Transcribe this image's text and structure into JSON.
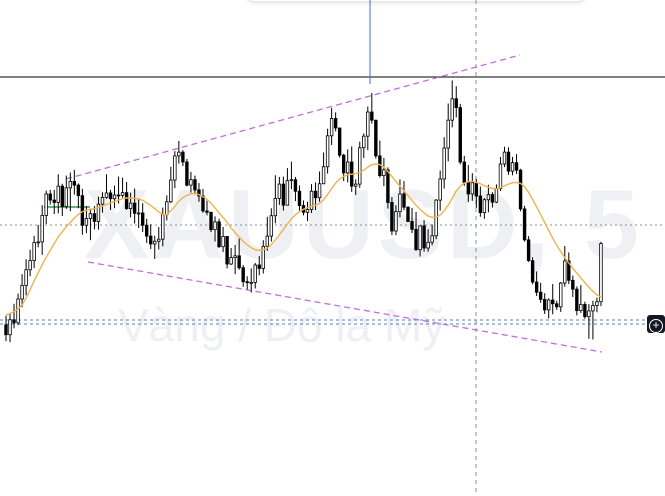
{
  "watermark": {
    "symbol": "XAUUSD, 5",
    "description": "Vàng / Đô la Mỹ"
  },
  "buttons": {
    "add_label": "+"
  },
  "colors": {
    "candle_body": "#ffffff",
    "candle_border": "#000000",
    "moving_average": "#f0b34f",
    "trendline": "#c36ddf",
    "crosshair": "#8a8f99",
    "horizontal_line": "#000000",
    "price_marker": "#5b7dbf",
    "vertical_marker": "#3f6fcf",
    "short_marker": "#2e9c44"
  },
  "chart_data": {
    "type": "candlestick",
    "title": "",
    "xlabel": "",
    "ylabel": "",
    "x": [],
    "ylim": [
      0,
      100
    ],
    "grid": false,
    "legend": "none",
    "note_values": "price units are not shown in the image; values below are on a 0-100 relative scale",
    "ohlc": [
      [
        22.1,
        24.8,
        17.3,
        19.2
      ],
      [
        19.2,
        25.5,
        17.0,
        23.6
      ],
      [
        23.6,
        28.3,
        21.1,
        22.7
      ],
      [
        22.7,
        31.3,
        22.0,
        29.7
      ],
      [
        29.7,
        37.0,
        27.3,
        33.7
      ],
      [
        33.7,
        41.4,
        30.8,
        38.3
      ],
      [
        38.3,
        44.2,
        36.4,
        41.0
      ],
      [
        41.0,
        48.3,
        38.8,
        46.3
      ],
      [
        46.3,
        51.5,
        44.9,
        46.5
      ],
      [
        46.5,
        57.3,
        42.7,
        54.3
      ],
      [
        54.3,
        61.6,
        51.8,
        60.6
      ],
      [
        60.6,
        61.8,
        57.5,
        58.8
      ],
      [
        58.8,
        61.8,
        54.7,
        58.1
      ],
      [
        58.1,
        66.4,
        54.9,
        62.9
      ],
      [
        62.9,
        63.6,
        54.1,
        56.9
      ],
      [
        56.9,
        66.0,
        56.2,
        62.4
      ],
      [
        62.4,
        66.9,
        55.5,
        64.3
      ],
      [
        64.3,
        67.7,
        60.4,
        63.2
      ],
      [
        63.2,
        63.7,
        56.4,
        60.1
      ],
      [
        60.1,
        62.1,
        48.6,
        51.4
      ],
      [
        51.4,
        57.0,
        49.1,
        53.4
      ],
      [
        53.4,
        56.3,
        47.0,
        54.8
      ],
      [
        54.8,
        57.0,
        50.2,
        52.5
      ],
      [
        52.5,
        59.8,
        50.1,
        57.6
      ],
      [
        57.6,
        61.1,
        55.1,
        59.6
      ],
      [
        59.6,
        66.4,
        59.2,
        60.9
      ],
      [
        60.9,
        61.8,
        55.9,
        59.2
      ],
      [
        59.2,
        63.1,
        56.4,
        60.3
      ],
      [
        60.3,
        65.7,
        57.8,
        60.2
      ],
      [
        60.2,
        65.4,
        59.5,
        61.0
      ],
      [
        61.0,
        64.1,
        55.9,
        56.3
      ],
      [
        56.3,
        61.0,
        53.7,
        57.9
      ],
      [
        57.9,
        62.2,
        51.9,
        54.9
      ],
      [
        54.9,
        59.3,
        50.6,
        55.0
      ],
      [
        55.0,
        57.9,
        49.4,
        51.4
      ],
      [
        51.4,
        53.3,
        46.2,
        48.2
      ],
      [
        48.2,
        51.7,
        44.4,
        45.9
      ],
      [
        45.9,
        48.3,
        41.5,
        46.7
      ],
      [
        46.7,
        50.9,
        44.3,
        47.3
      ],
      [
        47.3,
        56.6,
        45.2,
        54.5
      ],
      [
        54.5,
        60.2,
        52.8,
        58.3
      ],
      [
        58.3,
        68.6,
        57.9,
        64.7
      ],
      [
        64.7,
        73.2,
        62.3,
        71.8
      ],
      [
        71.8,
        76.2,
        69.5,
        72.9
      ],
      [
        72.9,
        73.5,
        68.8,
        70.0
      ],
      [
        70.0,
        70.9,
        62.8,
        63.2
      ],
      [
        63.2,
        67.1,
        61.0,
        64.8
      ],
      [
        64.8,
        66.0,
        60.5,
        61.8
      ],
      [
        61.8,
        63.8,
        58.3,
        60.0
      ],
      [
        60.0,
        62.1,
        55.1,
        55.6
      ],
      [
        55.6,
        58.6,
        54.3,
        55.2
      ],
      [
        55.2,
        55.4,
        49.4,
        50.1
      ],
      [
        50.1,
        54.0,
        46.6,
        52.4
      ],
      [
        52.4,
        53.3,
        44.7,
        45.1
      ],
      [
        45.1,
        50.9,
        43.5,
        48.1
      ],
      [
        48.1,
        48.1,
        38.7,
        40.0
      ],
      [
        40.0,
        44.7,
        39.7,
        41.9
      ],
      [
        41.9,
        45.6,
        37.0,
        42.4
      ],
      [
        42.4,
        47.5,
        38.3,
        38.9
      ],
      [
        38.9,
        39.7,
        33.3,
        34.8
      ],
      [
        34.8,
        36.4,
        32.5,
        34.5
      ],
      [
        34.5,
        38.7,
        31.6,
        34.6
      ],
      [
        34.6,
        40.3,
        32.8,
        39.7
      ],
      [
        39.7,
        42.3,
        36.7,
        38.7
      ],
      [
        38.7,
        47.0,
        37.2,
        45.2
      ],
      [
        45.2,
        53.9,
        43.9,
        48.2
      ],
      [
        48.2,
        56.4,
        46.6,
        54.2
      ],
      [
        54.2,
        66.1,
        52.0,
        59.3
      ],
      [
        59.3,
        65.6,
        57.4,
        63.5
      ],
      [
        63.5,
        65.7,
        55.7,
        57.3
      ],
      [
        57.3,
        68.2,
        57.3,
        64.5
      ],
      [
        64.5,
        70.1,
        62.0,
        64.8
      ],
      [
        64.8,
        65.6,
        58.5,
        61.4
      ],
      [
        61.4,
        63.1,
        55.7,
        57.2
      ],
      [
        57.2,
        58.7,
        54.3,
        55.2
      ],
      [
        55.2,
        58.3,
        52.6,
        56.0
      ],
      [
        56.0,
        63.5,
        55.0,
        61.4
      ],
      [
        61.4,
        64.0,
        55.9,
        59.5
      ],
      [
        59.5,
        67.2,
        58.3,
        63.6
      ],
      [
        63.6,
        72.8,
        63.5,
        68.6
      ],
      [
        68.6,
        79.8,
        66.6,
        77.7
      ],
      [
        77.7,
        85.9,
        75.0,
        82.8
      ],
      [
        82.8,
        84.6,
        79.0,
        80.0
      ],
      [
        80.0,
        80.1,
        71.3,
        72.0
      ],
      [
        72.0,
        72.4,
        64.4,
        66.8
      ],
      [
        66.8,
        73.7,
        64.0,
        70.0
      ],
      [
        70.0,
        74.6,
        61.2,
        62.9
      ],
      [
        62.9,
        64.9,
        60.3,
        63.5
      ],
      [
        63.5,
        76.0,
        62.4,
        74.2
      ],
      [
        74.2,
        78.4,
        71.2,
        77.6
      ],
      [
        77.6,
        86.3,
        73.5,
        84.7
      ],
      [
        84.7,
        90.3,
        81.3,
        82.3
      ],
      [
        82.3,
        82.4,
        71.0,
        71.8
      ],
      [
        71.8,
        76.3,
        65.4,
        66.0
      ],
      [
        66.0,
        71.2,
        62.9,
        67.7
      ],
      [
        67.7,
        68.4,
        56.3,
        58.1
      ],
      [
        58.1,
        59.7,
        48.5,
        49.7
      ],
      [
        49.7,
        57.3,
        48.5,
        55.4
      ],
      [
        55.4,
        64.9,
        53.7,
        60.6
      ],
      [
        60.6,
        64.4,
        55.8,
        56.7
      ],
      [
        56.7,
        57.0,
        52.3,
        52.5
      ],
      [
        52.5,
        56.5,
        49.1,
        50.2
      ],
      [
        50.2,
        55.3,
        43.9,
        44.2
      ],
      [
        44.2,
        51.3,
        42.2,
        51.2
      ],
      [
        51.2,
        52.9,
        43.6,
        44.7
      ],
      [
        44.7,
        50.2,
        43.6,
        46.4
      ],
      [
        46.4,
        51.6,
        45.5,
        48.3
      ],
      [
        48.3,
        59.1,
        47.3,
        58.8
      ],
      [
        58.8,
        67.5,
        55.7,
        65.0
      ],
      [
        65.0,
        77.3,
        62.2,
        74.1
      ],
      [
        74.1,
        87.2,
        70.2,
        82.3
      ],
      [
        82.3,
        94.0,
        80.2,
        88.6
      ],
      [
        88.6,
        92.3,
        83.1,
        86.0
      ],
      [
        86.0,
        87.1,
        69.3,
        70.0
      ],
      [
        70.0,
        71.8,
        63.0,
        64.0
      ],
      [
        64.0,
        69.1,
        58.2,
        60.6
      ],
      [
        60.6,
        66.7,
        58.6,
        63.9
      ],
      [
        63.9,
        65.0,
        56.5,
        60.0
      ],
      [
        60.0,
        62.8,
        53.9,
        55.1
      ],
      [
        55.1,
        59.4,
        53.3,
        58.9
      ],
      [
        58.9,
        63.3,
        55.2,
        60.4
      ],
      [
        60.4,
        61.1,
        56.6,
        58.2
      ],
      [
        58.2,
        63.4,
        57.9,
        62.2
      ],
      [
        62.2,
        71.5,
        61.5,
        69.4
      ],
      [
        69.4,
        74.5,
        68.5,
        72.9
      ],
      [
        72.9,
        74.3,
        66.2,
        67.3
      ],
      [
        67.3,
        71.5,
        66.1,
        69.8
      ],
      [
        69.8,
        72.3,
        66.5,
        67.6
      ],
      [
        67.6,
        68.0,
        55.5,
        56.2
      ],
      [
        56.2,
        57.1,
        46.6,
        47.1
      ],
      [
        47.1,
        48.2,
        40.6,
        41.0
      ],
      [
        41.0,
        42.0,
        34.0,
        34.7
      ],
      [
        34.7,
        37.8,
        30.6,
        31.7
      ],
      [
        31.7,
        34.5,
        28.6,
        29.6
      ],
      [
        29.6,
        31.4,
        25.3,
        26.5
      ],
      [
        26.5,
        29.9,
        24.0,
        29.4
      ],
      [
        29.4,
        34.1,
        25.2,
        28.3
      ],
      [
        28.3,
        29.2,
        26.5,
        27.4
      ],
      [
        27.4,
        34.7,
        25.9,
        34.4
      ],
      [
        34.4,
        45.3,
        33.3,
        40.9
      ],
      [
        40.9,
        43.4,
        34.1,
        35.2
      ],
      [
        35.2,
        36.6,
        30.3,
        32.6
      ],
      [
        32.6,
        33.4,
        24.9,
        26.3
      ],
      [
        26.3,
        33.8,
        25.6,
        28.1
      ],
      [
        28.1,
        28.9,
        23.9,
        24.5
      ],
      [
        24.5,
        28.2,
        18.0,
        26.2
      ],
      [
        26.2,
        29.2,
        17.8,
        27.8
      ],
      [
        27.8,
        30.1,
        25.8,
        28.9
      ],
      [
        28.9,
        46.5,
        27.6,
        46.0
      ]
    ],
    "moving_average": [
      25.0,
      25.5,
      26.0,
      26.8,
      28.0,
      30.0,
      32.5,
      35.0,
      37.5,
      39.8,
      42.0,
      44.0,
      46.0,
      48.0,
      49.5,
      51.0,
      52.2,
      53.5,
      54.6,
      55.4,
      55.8,
      56.0,
      56.3,
      56.7,
      57.1,
      57.5,
      57.9,
      58.4,
      58.8,
      59.2,
      59.4,
      59.4,
      59.3,
      59.1,
      58.7,
      58.0,
      57.2,
      56.3,
      55.3,
      54.6,
      54.5,
      55.6,
      57.0,
      58.5,
      59.5,
      60.2,
      60.6,
      60.7,
      60.4,
      59.8,
      59.0,
      57.9,
      56.5,
      55.0,
      53.7,
      52.2,
      50.6,
      49.2,
      47.9,
      46.7,
      45.6,
      44.8,
      44.2,
      44.0,
      44.2,
      44.7,
      45.7,
      47.0,
      48.6,
      50.2,
      51.8,
      53.3,
      54.5,
      55.4,
      56.1,
      56.6,
      57.0,
      57.3,
      57.8,
      58.9,
      60.4,
      62.2,
      63.8,
      65.0,
      65.8,
      66.2,
      66.4,
      66.6,
      67.0,
      67.6,
      68.5,
      69.2,
      69.4,
      69.2,
      68.5,
      67.2,
      65.7,
      64.3,
      62.9,
      61.5,
      60.1,
      58.7,
      57.3,
      56.1,
      55.0,
      54.1,
      53.7,
      53.8,
      54.4,
      55.7,
      57.3,
      59.3,
      61.4,
      62.9,
      63.8,
      64.2,
      64.3,
      64.0,
      63.6,
      63.0,
      62.6,
      62.2,
      62.1,
      62.4,
      63.0,
      63.5,
      63.9,
      64.0,
      63.7,
      62.7,
      61.1,
      59.0,
      56.8,
      54.5,
      52.2,
      49.9,
      47.6,
      45.5,
      43.6,
      41.9,
      40.3,
      38.8,
      37.3,
      35.9,
      34.5,
      33.2,
      32.0,
      30.9,
      30.3
    ]
  }
}
